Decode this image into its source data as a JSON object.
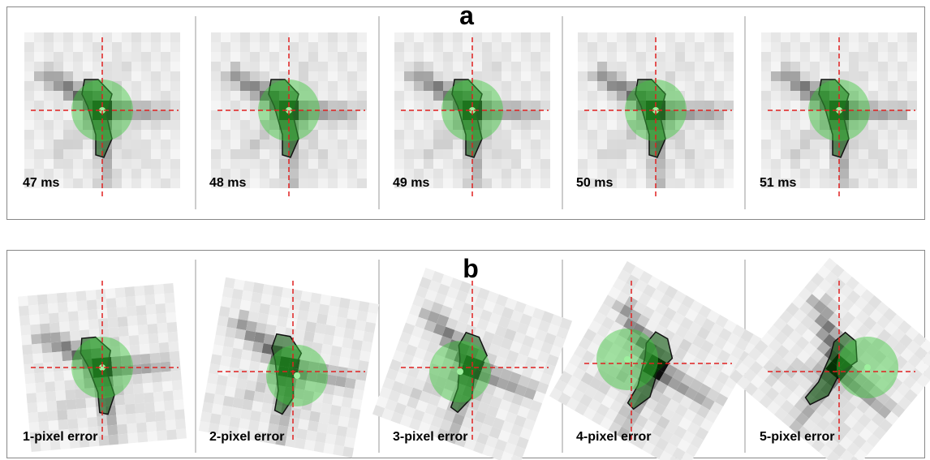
{
  "panels": [
    {
      "label": "a",
      "cells": [
        {
          "caption": "47 ms"
        },
        {
          "caption": "48 ms"
        },
        {
          "caption": "49 ms"
        },
        {
          "caption": "50 ms"
        },
        {
          "caption": "51 ms"
        }
      ]
    },
    {
      "label": "b",
      "cells": [
        {
          "caption": "1-pixel error"
        },
        {
          "caption": "2-pixel error"
        },
        {
          "caption": "3-pixel error"
        },
        {
          "caption": "4-pixel error"
        },
        {
          "caption": "5-pixel error"
        }
      ]
    }
  ]
}
